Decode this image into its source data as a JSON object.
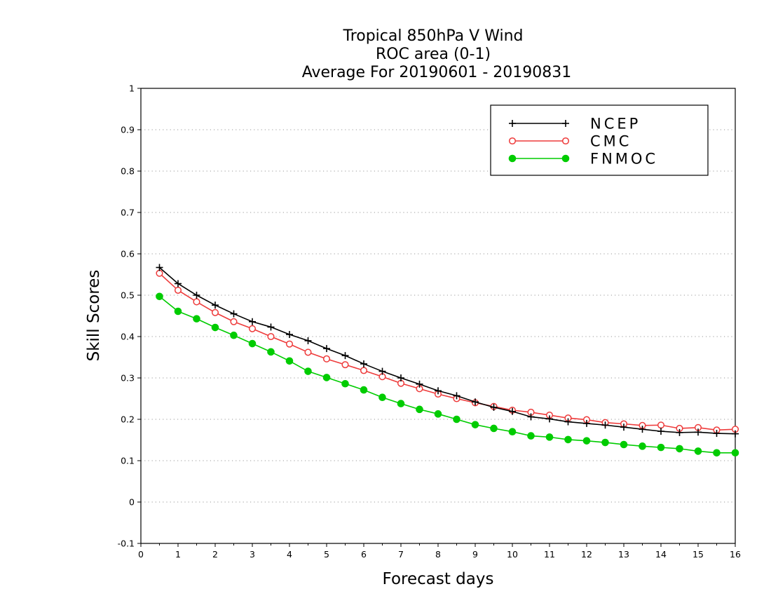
{
  "chart_data": {
    "type": "line",
    "title_lines": [
      "Tropical 850hPa V Wind",
      "ROC area (0-1)",
      "Average For 20190601 - 20190831"
    ],
    "xlabel": "Forecast days",
    "ylabel": "Skill Scores",
    "xlim": [
      0,
      16
    ],
    "ylim": [
      -0.1,
      1
    ],
    "x_ticks": [
      "0",
      "1",
      "2",
      "3",
      "4",
      "5",
      "6",
      "7",
      "8",
      "9",
      "10",
      "11",
      "12",
      "13",
      "14",
      "15",
      "16"
    ],
    "y_ticks": [
      "-0.1",
      "0",
      "0.1",
      "0.2",
      "0.3",
      "0.4",
      "0.5",
      "0.6",
      "0.7",
      "0.8",
      "0.9",
      "1"
    ],
    "grid": "dotted horizontal",
    "legend_position": "top-right",
    "x": [
      0.5,
      1,
      1.5,
      2,
      2.5,
      3,
      3.5,
      4,
      4.5,
      5,
      5.5,
      6,
      6.5,
      7,
      7.5,
      8,
      8.5,
      9,
      9.5,
      10,
      10.5,
      11,
      11.5,
      12,
      12.5,
      13,
      13.5,
      14,
      14.5,
      15,
      15.5,
      16
    ],
    "series": [
      {
        "name": "NCEP",
        "color": "#000000",
        "marker": "plus",
        "values": [
          0.567,
          0.528,
          0.5,
          0.476,
          0.455,
          0.436,
          0.423,
          0.405,
          0.39,
          0.371,
          0.354,
          0.334,
          0.316,
          0.3,
          0.285,
          0.269,
          0.257,
          0.242,
          0.229,
          0.219,
          0.206,
          0.201,
          0.194,
          0.19,
          0.186,
          0.181,
          0.176,
          0.171,
          0.168,
          0.169,
          0.166,
          0.165
        ]
      },
      {
        "name": "CMC",
        "color": "#ee3b3b",
        "marker": "open-circle",
        "values": [
          0.553,
          0.512,
          0.484,
          0.458,
          0.436,
          0.419,
          0.4,
          0.382,
          0.362,
          0.346,
          0.332,
          0.318,
          0.303,
          0.287,
          0.274,
          0.261,
          0.25,
          0.24,
          0.231,
          0.222,
          0.217,
          0.21,
          0.203,
          0.199,
          0.192,
          0.189,
          0.185,
          0.186,
          0.178,
          0.18,
          0.174,
          0.176
        ]
      },
      {
        "name": "FNMOC",
        "color": "#00cc00",
        "marker": "filled-circle",
        "values": [
          0.497,
          0.461,
          0.443,
          0.422,
          0.403,
          0.383,
          0.363,
          0.341,
          0.316,
          0.301,
          0.286,
          0.271,
          0.253,
          0.238,
          0.224,
          0.213,
          0.2,
          0.187,
          0.178,
          0.17,
          0.16,
          0.157,
          0.151,
          0.148,
          0.144,
          0.139,
          0.135,
          0.132,
          0.129,
          0.123,
          0.119,
          0.119
        ]
      }
    ]
  }
}
